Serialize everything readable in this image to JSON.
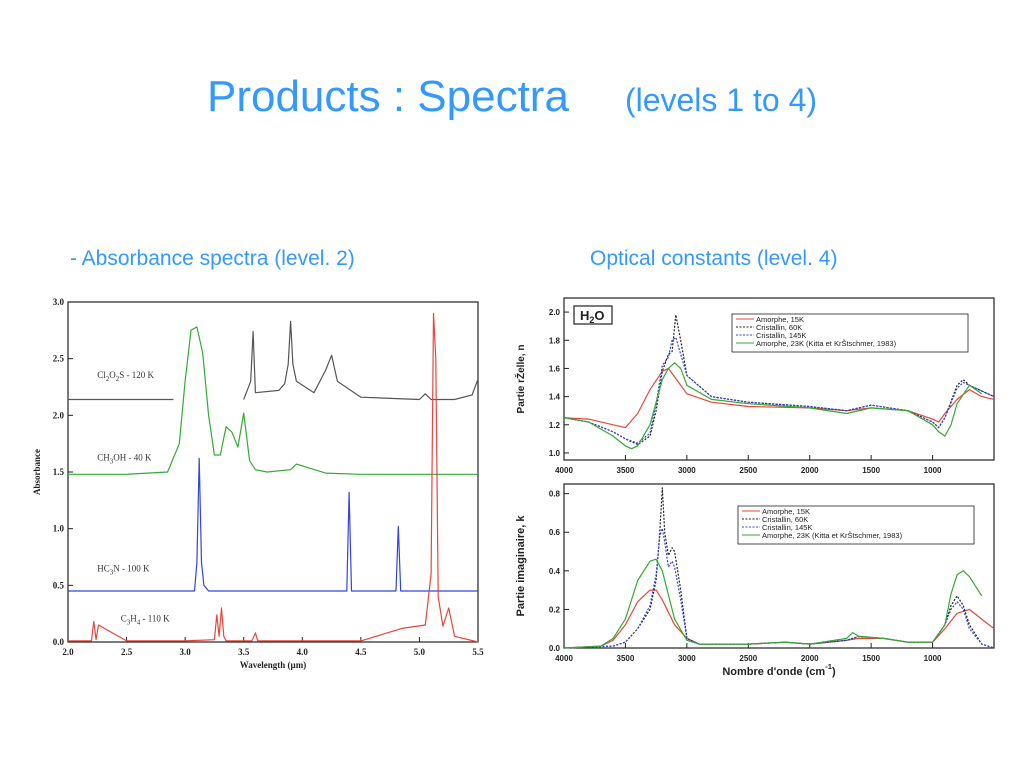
{
  "slide": {
    "title": "Products :  Spectra",
    "subtitle": "(levels 1 to 4)",
    "left_caption": "- Absorbance spectra  (level. 2)",
    "right_caption": "Optical constants (level. 4)"
  },
  "colors": {
    "title": "#3399ff",
    "black": "#222222",
    "red": "#e8463c",
    "green": "#33aa33",
    "blue": "#3344dd",
    "grey": "#555555"
  },
  "chart_data": [
    {
      "type": "line",
      "xlabel": "Wavelength (µm)",
      "ylabel": "Absorbance",
      "xlim": [
        2.0,
        5.5
      ],
      "ylim": [
        0.0,
        3.0
      ],
      "xticks": [
        "2.0",
        "2.5",
        "3.0",
        "3.5",
        "4.0",
        "4.5",
        "5.0",
        "5.5"
      ],
      "yticks": [
        "0.0",
        "0.5",
        "1.0",
        "1.5",
        "2.0",
        "2.5",
        "3.0"
      ],
      "grid": false,
      "series": [
        {
          "name": "C2O2S - 120 K",
          "color": "grey",
          "x": [
            2.0,
            2.9,
            3.0,
            3.5,
            3.56,
            3.58,
            3.6,
            3.8,
            3.85,
            3.88,
            3.9,
            3.92,
            3.95,
            4.1,
            4.2,
            4.25,
            4.3,
            4.5,
            5.0,
            5.05,
            5.1,
            5.3,
            5.45,
            5.5
          ],
          "y": [
            2.14,
            2.14,
            null,
            2.14,
            2.3,
            2.74,
            2.2,
            2.22,
            2.28,
            2.45,
            2.83,
            2.45,
            2.3,
            2.2,
            2.4,
            2.53,
            2.3,
            2.16,
            2.14,
            2.19,
            2.14,
            2.14,
            2.18,
            2.32
          ]
        },
        {
          "name": "CH3OH - 40 K",
          "color": "green",
          "x": [
            2.0,
            2.5,
            2.85,
            2.95,
            3.0,
            3.05,
            3.1,
            3.15,
            3.2,
            3.25,
            3.3,
            3.35,
            3.4,
            3.45,
            3.5,
            3.55,
            3.6,
            3.7,
            3.9,
            3.95,
            4.2,
            4.5,
            5.0,
            5.5
          ],
          "y": [
            1.48,
            1.48,
            1.5,
            1.75,
            2.3,
            2.75,
            2.78,
            2.55,
            2.0,
            1.65,
            1.65,
            1.9,
            1.85,
            1.72,
            2.02,
            1.6,
            1.52,
            1.5,
            1.52,
            1.57,
            1.49,
            1.48,
            1.48,
            1.48
          ]
        },
        {
          "name": "HC3N - 100 K",
          "color": "blue",
          "x": [
            2.0,
            3.08,
            3.1,
            3.12,
            3.14,
            3.16,
            3.2,
            4.38,
            4.4,
            4.42,
            4.8,
            4.82,
            4.84,
            5.5
          ],
          "y": [
            0.45,
            0.45,
            0.7,
            1.62,
            0.7,
            0.5,
            0.45,
            0.45,
            1.32,
            0.45,
            0.45,
            1.02,
            0.45,
            0.45
          ],
          "end_x": 5.08
        },
        {
          "name": "C3H4 - 110 K",
          "color": "red",
          "x": [
            2.0,
            2.2,
            2.22,
            2.24,
            2.26,
            2.5,
            3.0,
            3.25,
            3.27,
            3.29,
            3.31,
            3.33,
            3.35,
            3.57,
            3.6,
            3.62,
            4.5,
            4.85,
            5.05,
            5.1,
            5.12,
            5.14,
            5.16,
            5.2,
            5.25,
            5.3,
            5.5
          ],
          "y": [
            0.01,
            0.01,
            0.18,
            0.02,
            0.15,
            0.01,
            0.01,
            0.02,
            0.24,
            0.05,
            0.3,
            0.05,
            0.01,
            0.01,
            0.08,
            0.01,
            0.01,
            0.12,
            0.15,
            0.6,
            2.9,
            2.5,
            0.4,
            0.14,
            0.3,
            0.05,
            0.0
          ]
        }
      ],
      "annotations": [
        {
          "main": "Cl",
          "sub1": "2",
          "mid": "O",
          "sub2": "2",
          "tail": "S  - 120 K",
          "x": 2.25,
          "y": 2.33
        },
        {
          "main": "CH",
          "sub1": "3",
          "mid": "OH - 40 K",
          "sub2": "",
          "tail": "",
          "x": 2.25,
          "y": 1.6
        },
        {
          "main": "HC",
          "sub1": "3",
          "mid": "N - 100 K",
          "sub2": "",
          "tail": "",
          "x": 2.25,
          "y": 0.62
        },
        {
          "main": "C",
          "sub1": "3",
          "mid": "H",
          "sub2": "4",
          "tail": "  - 110 K",
          "x": 2.45,
          "y": 0.18
        }
      ]
    },
    {
      "type": "line",
      "ylabel": "Partie rŽelle, n",
      "label_box": "H2O",
      "xlim": [
        4000,
        500
      ],
      "ylim": [
        0.95,
        2.1
      ],
      "xticks": [
        "4000",
        "3500",
        "3000",
        "2500",
        "2000",
        "1500",
        "1000"
      ],
      "yticks": [
        "1.0",
        "1.2",
        "1.4",
        "1.6",
        "1.8",
        "2.0"
      ],
      "grid": false,
      "legend": "top-right",
      "series": [
        {
          "name": "Amorphe, 15K",
          "color": "red",
          "x": [
            4000,
            3800,
            3600,
            3500,
            3400,
            3300,
            3200,
            3150,
            3100,
            3000,
            2800,
            2500,
            2000,
            1700,
            1500,
            1200,
            1000,
            950,
            900,
            800,
            700,
            600,
            500
          ],
          "y": [
            1.25,
            1.24,
            1.2,
            1.18,
            1.28,
            1.45,
            1.58,
            1.6,
            1.54,
            1.42,
            1.36,
            1.33,
            1.32,
            1.3,
            1.32,
            1.3,
            1.24,
            1.22,
            1.28,
            1.38,
            1.45,
            1.4,
            1.38
          ]
        },
        {
          "name": "Cristallin, 60K",
          "color": "black",
          "x": [
            4000,
            3800,
            3600,
            3500,
            3400,
            3300,
            3250,
            3200,
            3150,
            3120,
            3090,
            3050,
            3000,
            2800,
            2500,
            2000,
            1700,
            1500,
            1200,
            1000,
            950,
            900,
            800,
            750,
            700,
            500
          ],
          "y": [
            1.25,
            1.22,
            1.15,
            1.1,
            1.06,
            1.12,
            1.3,
            1.58,
            1.7,
            1.72,
            1.98,
            1.8,
            1.55,
            1.4,
            1.36,
            1.33,
            1.3,
            1.34,
            1.3,
            1.22,
            1.18,
            1.25,
            1.48,
            1.52,
            1.48,
            1.4
          ]
        },
        {
          "name": "Cristallin, 145K",
          "color": "blue",
          "x": [
            4000,
            3800,
            3600,
            3500,
            3400,
            3300,
            3250,
            3200,
            3150,
            3120,
            3090,
            3050,
            3000,
            2800,
            2500,
            2000,
            1700,
            1500,
            1200,
            1000,
            950,
            900,
            800,
            750,
            700,
            500
          ],
          "y": [
            1.25,
            1.22,
            1.15,
            1.1,
            1.07,
            1.14,
            1.35,
            1.62,
            1.68,
            1.8,
            1.82,
            1.7,
            1.55,
            1.4,
            1.36,
            1.33,
            1.3,
            1.34,
            1.3,
            1.22,
            1.18,
            1.25,
            1.46,
            1.5,
            1.48,
            1.4
          ]
        },
        {
          "name": "Amorphe, 23K (Kitta et KrŠtschmer, 1983)",
          "color": "green",
          "x": [
            4000,
            3800,
            3600,
            3500,
            3450,
            3400,
            3300,
            3200,
            3150,
            3100,
            3050,
            3000,
            2800,
            2500,
            2000,
            1700,
            1500,
            1200,
            1000,
            950,
            900,
            850,
            800,
            700,
            600
          ],
          "y": [
            1.25,
            1.22,
            1.12,
            1.05,
            1.03,
            1.05,
            1.2,
            1.52,
            1.6,
            1.64,
            1.6,
            1.48,
            1.38,
            1.35,
            1.32,
            1.28,
            1.32,
            1.3,
            1.2,
            1.15,
            1.12,
            1.2,
            1.35,
            1.48,
            1.42
          ]
        }
      ]
    },
    {
      "type": "line",
      "xlabel": "Nombre d'onde (cm",
      "xlabel_sup": "-1",
      "xlabel_tail": ")",
      "ylabel": "Partie imaginaire, k",
      "xlim": [
        4000,
        500
      ],
      "ylim": [
        0.0,
        0.85
      ],
      "xticks": [
        "4000",
        "3500",
        "3000",
        "2500",
        "2000",
        "1500",
        "1000"
      ],
      "yticks": [
        "0.0",
        "0.2",
        "0.4",
        "0.6",
        "0.8"
      ],
      "grid": false,
      "legend": "top-right",
      "series": [
        {
          "name": "Amorphe, 15K",
          "color": "red",
          "x": [
            4000,
            3700,
            3600,
            3500,
            3400,
            3300,
            3250,
            3200,
            3100,
            3000,
            2900,
            2500,
            2200,
            2000,
            1700,
            1600,
            1400,
            1200,
            1000,
            900,
            800,
            700,
            600,
            500
          ],
          "y": [
            0.0,
            0.01,
            0.04,
            0.12,
            0.24,
            0.3,
            0.3,
            0.25,
            0.12,
            0.05,
            0.02,
            0.02,
            0.03,
            0.02,
            0.04,
            0.05,
            0.05,
            0.03,
            0.03,
            0.1,
            0.18,
            0.2,
            0.15,
            0.1
          ]
        },
        {
          "name": "Cristallin, 60K",
          "color": "black",
          "x": [
            4000,
            3600,
            3500,
            3400,
            3300,
            3250,
            3220,
            3200,
            3180,
            3150,
            3120,
            3100,
            3050,
            3000,
            2900,
            2500,
            2200,
            2000,
            1700,
            1600,
            1400,
            1200,
            1000,
            900,
            850,
            800,
            750,
            700,
            600,
            500
          ],
          "y": [
            0.0,
            0.01,
            0.03,
            0.1,
            0.2,
            0.35,
            0.6,
            0.83,
            0.6,
            0.48,
            0.52,
            0.5,
            0.3,
            0.05,
            0.02,
            0.02,
            0.03,
            0.02,
            0.04,
            0.06,
            0.05,
            0.03,
            0.03,
            0.12,
            0.22,
            0.27,
            0.22,
            0.12,
            0.02,
            0.0
          ]
        },
        {
          "name": "Cristallin, 145K",
          "color": "blue",
          "x": [
            4000,
            3600,
            3500,
            3400,
            3300,
            3250,
            3220,
            3200,
            3180,
            3150,
            3120,
            3100,
            3050,
            3000,
            2900,
            2500,
            2200,
            2000,
            1700,
            1600,
            1400,
            1200,
            1000,
            900,
            850,
            800,
            750,
            700,
            600,
            500
          ],
          "y": [
            0.0,
            0.01,
            0.03,
            0.1,
            0.22,
            0.38,
            0.58,
            0.62,
            0.55,
            0.42,
            0.45,
            0.42,
            0.25,
            0.05,
            0.02,
            0.02,
            0.03,
            0.02,
            0.04,
            0.06,
            0.05,
            0.03,
            0.03,
            0.12,
            0.2,
            0.24,
            0.2,
            0.1,
            0.02,
            0.0
          ]
        },
        {
          "name": "Amorphe, 23K (Kitta et KrŠtschmer, 1983)",
          "color": "green",
          "x": [
            4000,
            3700,
            3600,
            3500,
            3400,
            3300,
            3250,
            3200,
            3100,
            3000,
            2900,
            2500,
            2200,
            2000,
            1700,
            1650,
            1600,
            1400,
            1200,
            1000,
            900,
            850,
            800,
            750,
            700,
            600
          ],
          "y": [
            0.0,
            0.01,
            0.05,
            0.15,
            0.35,
            0.45,
            0.46,
            0.4,
            0.15,
            0.04,
            0.02,
            0.02,
            0.03,
            0.02,
            0.05,
            0.08,
            0.06,
            0.05,
            0.03,
            0.03,
            0.12,
            0.28,
            0.38,
            0.4,
            0.37,
            0.27
          ]
        }
      ]
    }
  ]
}
